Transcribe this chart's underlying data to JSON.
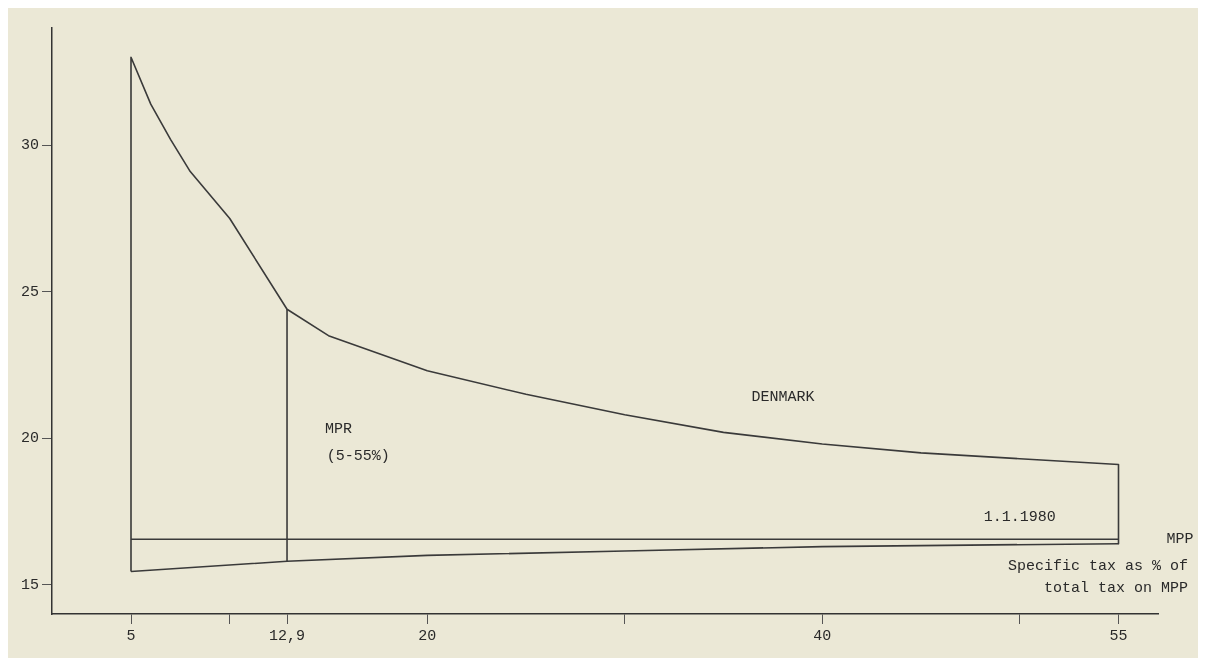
{
  "chart_data": {
    "type": "line",
    "xlabel": "Specific tax as % of\ntotal tax on MPP",
    "xlim": [
      1,
      57
    ],
    "ylim": [
      14,
      34
    ],
    "xticks": [
      5,
      {
        "value": 10,
        "label": null
      },
      {
        "value": 12.9,
        "label": "12,9"
      },
      20,
      {
        "value": 30,
        "label": null
      },
      40,
      {
        "value": 50,
        "label": null
      },
      55
    ],
    "yticks": [
      15,
      20,
      25,
      30
    ],
    "grid": false,
    "legend": false,
    "marker": "none",
    "line_style": "solid",
    "series": [
      {
        "color": "#3a3a3a",
        "x": [
          5,
          5,
          6,
          7,
          8,
          10,
          12.9,
          15,
          20,
          25,
          30,
          35,
          40,
          45,
          50,
          55,
          55
        ],
        "values": [
          15.45,
          33,
          31.4,
          30.2,
          29.1,
          27.5,
          24.4,
          23.5,
          22.3,
          21.5,
          20.8,
          20.2,
          19.8,
          19.5,
          19.3,
          19.1,
          16.4
        ]
      },
      {
        "color": "#3a3a3a",
        "x": [
          5,
          12.9,
          20,
          30,
          40,
          55
        ],
        "values": [
          15.45,
          15.8,
          16,
          16.15,
          16.3,
          16.4
        ]
      },
      {
        "color": "#3a3a3a",
        "x": [
          12.9,
          12.9
        ],
        "values": [
          15.8,
          24.4
        ]
      },
      {
        "color": "#3a3a3a",
        "x": [
          5,
          55
        ],
        "values": [
          16.55,
          16.55
        ]
      }
    ],
    "annotations": [
      "DENMARK",
      "MPR",
      "(5-55%)",
      "1.1.1980",
      "MPP"
    ]
  }
}
